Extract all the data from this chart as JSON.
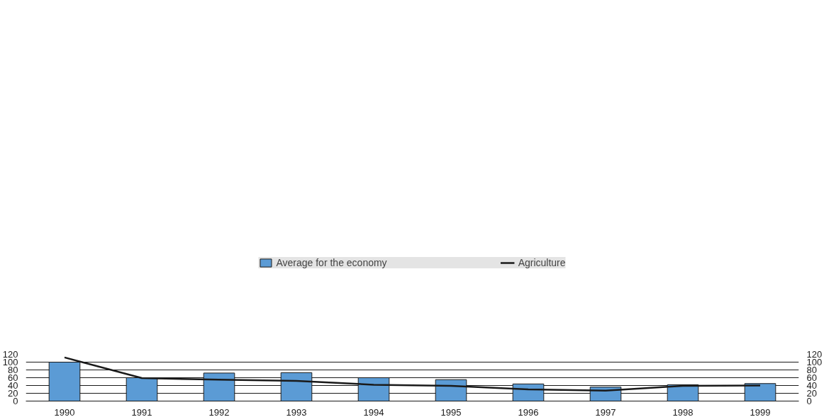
{
  "chart_data": {
    "type": "bar",
    "categories": [
      "1990",
      "1991",
      "1992",
      "1993",
      "1994",
      "1995",
      "1996",
      "1997",
      "1998",
      "1999"
    ],
    "series": [
      {
        "name": "Average for the economy",
        "color": "#5b9bd5",
        "values": [
          100,
          60,
          72,
          73,
          60,
          55,
          44,
          36,
          42,
          45
        ]
      },
      {
        "name": "Agriculture",
        "type": "line",
        "color": "#1a1a1a",
        "values": [
          112,
          59,
          55,
          52,
          42,
          39,
          30,
          27,
          39,
          40
        ]
      }
    ],
    "ylim": [
      0,
      120
    ],
    "yticks": [
      0,
      20,
      40,
      60,
      80,
      100,
      120
    ],
    "y2lim": [
      0,
      120
    ],
    "y2ticks": [
      0,
      20,
      40,
      60,
      80,
      100,
      120
    ],
    "grid": "y",
    "legend": "top",
    "marker": "none",
    "line_style": "solid"
  }
}
